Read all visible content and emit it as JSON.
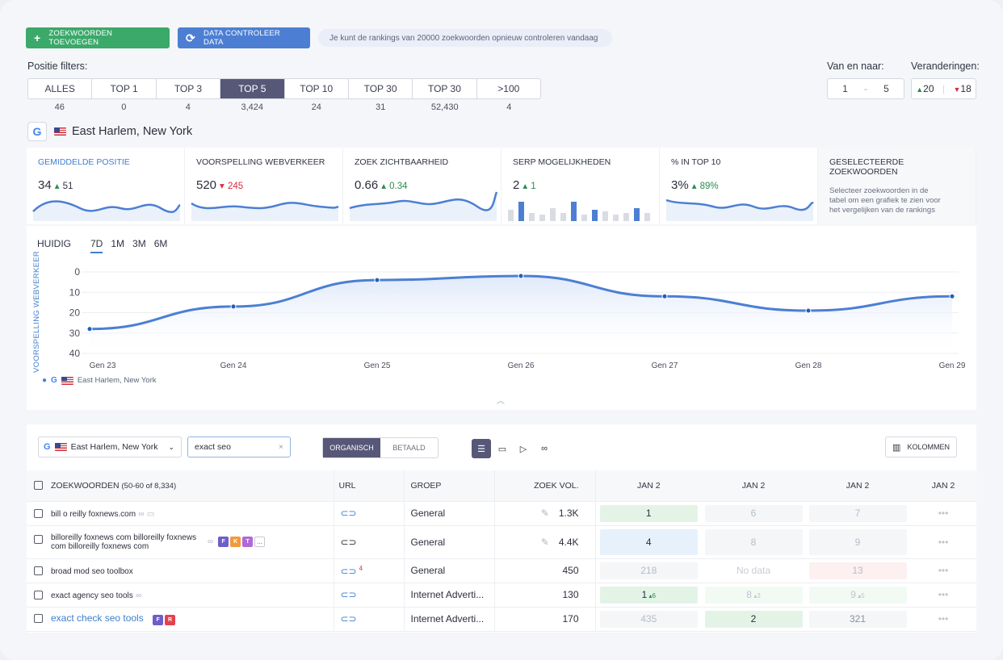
{
  "toolbar": {
    "add_label": "ZOEKWOORDEN TOEVOEGEN",
    "check_label": "DATA CONTROLEER DATA",
    "notice": "Je kunt de rankings van 20000 zoekwoorden opnieuw controleren vandaag"
  },
  "filters": {
    "label": "Positie filters:",
    "items": [
      {
        "label": "ALLES",
        "count": "46"
      },
      {
        "label": "TOP 1",
        "count": "0"
      },
      {
        "label": "TOP 3",
        "count": "4"
      },
      {
        "label": "TOP 5",
        "count": "3,424"
      },
      {
        "label": "TOP 10",
        "count": "24"
      },
      {
        "label": "TOP 30",
        "count": "31"
      },
      {
        "label": "TOP 30",
        "count": "52,430"
      },
      {
        "label": ">100",
        "count": "4"
      }
    ]
  },
  "range": {
    "label": "Van en naar:",
    "from": "1",
    "sep": "-",
    "to": "5"
  },
  "changes": {
    "label": "Veranderingen:",
    "up": "20",
    "down": "18"
  },
  "location": "East Harlem, New York",
  "metrics": [
    {
      "title": "GEMIDDELDE POSITIE",
      "value": "34",
      "delta": "51",
      "dir": "up"
    },
    {
      "title": "VOORSPELLING WEBVERKEER",
      "value": "520",
      "delta": "245",
      "dir": "down"
    },
    {
      "title": "ZOEK ZICHTBAARHEID",
      "value": "0.66",
      "delta": "0.34",
      "dir": "up"
    },
    {
      "title": "SERP MOGELIJKHEDEN",
      "value": "2",
      "delta": "1",
      "dir": "up"
    },
    {
      "title": "% IN TOP 10",
      "value": "3%",
      "delta": "89%",
      "dir": "up"
    },
    {
      "title": "GESELECTEERDE ZOEKWOORDEN",
      "desc": "Selecteer zoekwoorden in de tabel om een grafiek te zien voor het vergelijken van de rankings"
    }
  ],
  "chart_tabs": [
    "HUIDIG",
    "7D",
    "1M",
    "3M",
    "6M"
  ],
  "chart_data": {
    "type": "line",
    "ylabel": "VOORSPELLING WEBVERKEER",
    "ylim": [
      0,
      40
    ],
    "y_inverted": true,
    "yticks": [
      "0",
      "10",
      "20",
      "30",
      "40"
    ],
    "categories": [
      "Gen 23",
      "Gen 24",
      "Gen 25",
      "Gen 26",
      "Gen 27",
      "Gen 28",
      "Gen 29"
    ],
    "series": [
      {
        "name": "East Harlem, New York",
        "values": [
          28,
          17,
          4,
          2,
          12,
          19,
          12
        ]
      }
    ],
    "legend": "bottom-left"
  },
  "table_controls": {
    "location": "East Harlem, New York",
    "search": "exact seo",
    "seg_organic": "ORGANISCH",
    "seg_paid": "BETAALD",
    "columns_label": "KOLOMMEN"
  },
  "table": {
    "headers": {
      "keyword": "ZOEKWOORDEN",
      "keyword_sub": "(50-60 of 8,334)",
      "url": "URL",
      "group": "GROEP",
      "volume": "ZOEK VOL.",
      "d1": "JAN 2",
      "d2": "JAN 2",
      "d3": "JAN 2",
      "d4": "JAN 2"
    },
    "rows": [
      {
        "kw": "bill o reilly foxnews.com",
        "group": "General",
        "vol": "1.3K",
        "r1": "1",
        "r2": "6",
        "r3": "7"
      },
      {
        "kw": "billoreilly foxnews com billoreilly foxnews com billoreilly foxnews com",
        "group": "General",
        "vol": "4.4K",
        "r1": "4",
        "r2": "8",
        "r3": "9"
      },
      {
        "kw": "broad mod seo toolbox",
        "url_note": "4",
        "group": "General",
        "vol": "450",
        "r1": "218",
        "r2": "No data",
        "r3": "13"
      },
      {
        "kw": "exact agency seo tools",
        "group": "Internet Adverti...",
        "vol": "130",
        "r1": "1",
        "r1d": "6",
        "r2": "8",
        "r2d": "3",
        "r3": "9",
        "r3d": "5"
      },
      {
        "kw": "exact check seo tools",
        "group": "Internet Adverti...",
        "vol": "170",
        "r1": "435",
        "r2": "2",
        "r3": "321"
      }
    ],
    "more": "•••"
  }
}
